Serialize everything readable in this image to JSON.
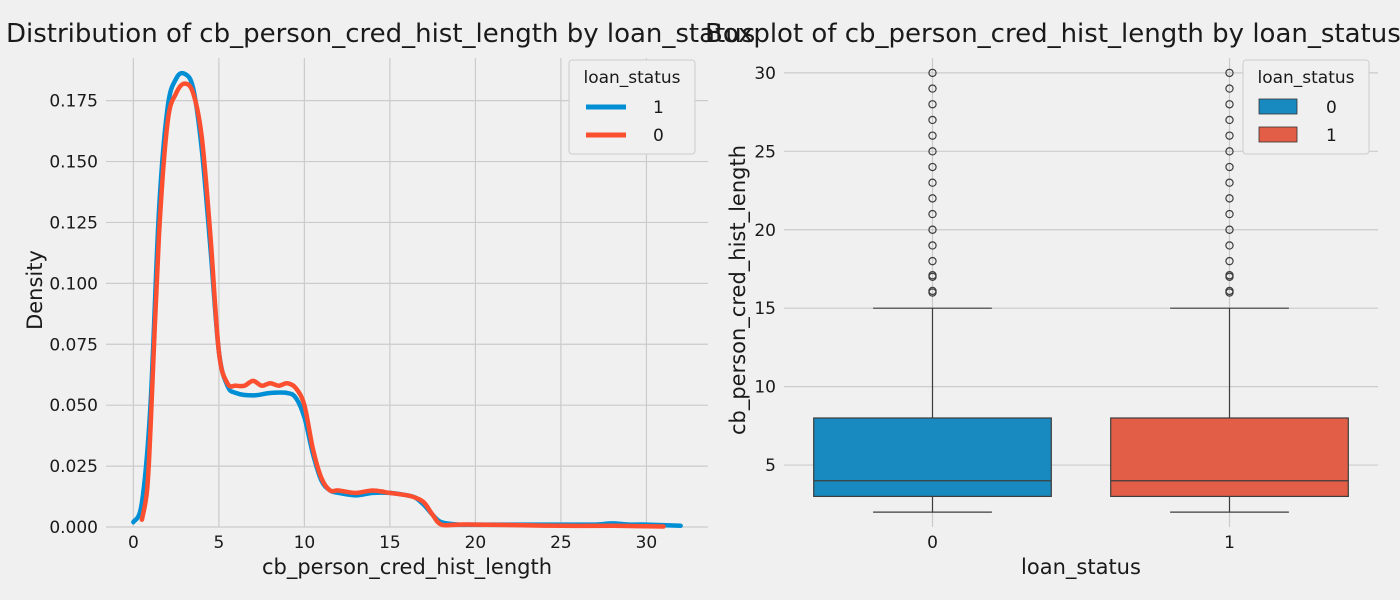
{
  "chart_data": [
    {
      "type": "line",
      "title": "Distribution of cb_person_cred_hist_length by loan_status",
      "xlabel": "cb_person_cred_hist_length",
      "ylabel": "Density",
      "xlim": [
        -1.6,
        33.6
      ],
      "ylim": [
        0,
        0.1925
      ],
      "xticks": [
        0,
        5,
        10,
        15,
        20,
        25,
        30
      ],
      "yticks": [
        0.0,
        0.025,
        0.05,
        0.075,
        0.1,
        0.125,
        0.15,
        0.175
      ],
      "ytick_labels": [
        "0.000",
        "0.025",
        "0.050",
        "0.075",
        "0.100",
        "0.125",
        "0.150",
        "0.175"
      ],
      "grid": true,
      "legend": {
        "title": "loan_status",
        "placement": "top-right"
      },
      "series": [
        {
          "name": "1",
          "color": "#008fd5",
          "x": [
            0,
            0.5,
            1.0,
            1.5,
            2.0,
            2.5,
            3.0,
            3.5,
            4.0,
            4.5,
            5.0,
            5.5,
            6.0,
            7.0,
            8.0,
            9.0,
            9.5,
            10.0,
            10.5,
            11.0,
            11.5,
            12.0,
            13.0,
            14.0,
            15.0,
            16.0,
            16.5,
            17.0,
            17.5,
            18.0,
            19.0,
            20.0,
            22.0,
            25.0,
            27.0,
            28.0,
            29.0,
            30.0,
            32.0
          ],
          "y": [
            0.002,
            0.01,
            0.05,
            0.13,
            0.172,
            0.184,
            0.186,
            0.18,
            0.155,
            0.115,
            0.072,
            0.058,
            0.055,
            0.054,
            0.055,
            0.055,
            0.053,
            0.045,
            0.03,
            0.019,
            0.015,
            0.014,
            0.013,
            0.014,
            0.014,
            0.013,
            0.012,
            0.009,
            0.005,
            0.002,
            0.001,
            0.001,
            0.001,
            0.001,
            0.001,
            0.0015,
            0.001,
            0.001,
            0.0005
          ]
        },
        {
          "name": "0",
          "color": "#fc4f30",
          "x": [
            0.5,
            0.8,
            1.0,
            1.5,
            2.0,
            2.5,
            3.0,
            3.5,
            4.0,
            4.5,
            5.0,
            5.5,
            6.0,
            6.5,
            7.0,
            7.5,
            8.0,
            8.5,
            9.0,
            9.5,
            10.0,
            10.5,
            11.0,
            11.5,
            12.0,
            13.0,
            14.0,
            15.0,
            16.0,
            16.5,
            17.0,
            17.5,
            18.0,
            19.0,
            20.0,
            22.0,
            25.0,
            28.0,
            30.0,
            31.0
          ],
          "y": [
            0.003,
            0.015,
            0.04,
            0.12,
            0.166,
            0.178,
            0.182,
            0.178,
            0.16,
            0.12,
            0.072,
            0.059,
            0.058,
            0.058,
            0.06,
            0.058,
            0.059,
            0.058,
            0.059,
            0.057,
            0.05,
            0.032,
            0.02,
            0.015,
            0.015,
            0.014,
            0.015,
            0.014,
            0.013,
            0.012,
            0.01,
            0.005,
            0.001,
            0.001,
            0.001,
            0.0008,
            0.0005,
            0.0005,
            0.0003,
            0.0002
          ]
        }
      ]
    },
    {
      "type": "box",
      "title": "Boxplot of cb_person_cred_hist_length by loan_status",
      "xlabel": "loan_status",
      "ylabel": "cb_person_cred_hist_length",
      "ylim": [
        1.05,
        30.95
      ],
      "yticks": [
        5,
        10,
        15,
        20,
        25,
        30
      ],
      "grid": true,
      "legend": {
        "title": "loan_status",
        "placement": "top-right"
      },
      "categories": [
        "0",
        "1"
      ],
      "series": [
        {
          "name": "0",
          "color": "#188ac0",
          "legend_color": "#188ac0",
          "q1": 3,
          "median": 4,
          "q3": 8,
          "whisker_low": 2,
          "whisker_high": 15,
          "outliers": [
            16,
            16.1,
            17,
            17.1,
            18,
            19,
            20,
            21,
            22,
            23,
            24,
            25,
            26,
            27,
            28,
            29,
            30
          ]
        },
        {
          "name": "1",
          "color": "#e35e46",
          "legend_color": "#e35e46",
          "q1": 3,
          "median": 4,
          "q3": 8,
          "whisker_low": 2,
          "whisker_high": 15,
          "outliers": [
            16,
            16.1,
            17,
            17.1,
            18,
            19,
            20,
            21,
            22,
            23,
            24,
            25,
            26,
            27,
            28,
            29,
            30
          ]
        }
      ]
    }
  ]
}
